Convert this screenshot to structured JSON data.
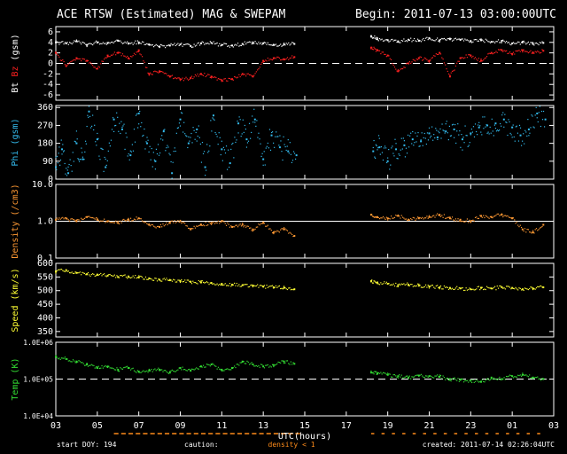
{
  "header": {
    "title": "ACE RTSW (Estimated) MAG & SWEPAM",
    "begin": "Begin: 2011-07-13 03:00:00UTC"
  },
  "footer": {
    "start_doy": "start DOY: 194",
    "caution_label": "caution:",
    "caution_value": "density < 1",
    "created": "created: 2011-07-14 02:26:04UTC"
  },
  "colors": {
    "bt": "#ffffff",
    "bz": "#ff2020",
    "phi": "#33bbee",
    "density": "#ff9933",
    "speed": "#ffff33",
    "temp": "#33dd33",
    "frame": "#ffffff",
    "caution": "#ff8c1a"
  },
  "chart_data": {
    "type": "scatter",
    "xlabel": "UTC(hours)",
    "xlim": [
      3,
      27
    ],
    "x_ticks": [
      "03",
      "05",
      "07",
      "09",
      "11",
      "13",
      "15",
      "17",
      "19",
      "21",
      "23",
      "01",
      "03"
    ],
    "data_gap_hours": [
      14.9,
      18.1
    ],
    "panels": [
      {
        "id": "mag",
        "ylabel_parts": [
          "Bt",
          "Bz",
          "(gsm)"
        ],
        "ylim": [
          -7,
          7
        ],
        "scale": "linear",
        "ticks": [
          6,
          4,
          2,
          0,
          -2,
          -4,
          -6
        ],
        "tick_labels": [
          "6",
          "4",
          "2",
          "0",
          "-2",
          "-4",
          "-6"
        ],
        "reference_line": 0,
        "series": [
          {
            "name": "Bt",
            "color_key": "bt",
            "x": [
              3,
              3.5,
              4,
              4.5,
              5,
              5.5,
              6,
              6.5,
              7,
              7.5,
              8,
              8.5,
              9,
              9.5,
              10,
              10.5,
              11,
              11.5,
              12,
              12.5,
              13,
              13.5,
              14,
              14.5,
              18.2,
              18.5,
              19,
              19.5,
              20,
              20.5,
              21,
              21.5,
              22,
              22.5,
              23,
              23.5,
              24,
              24.5,
              25,
              25.5,
              26,
              26.5
            ],
            "y": [
              4,
              3.8,
              4.2,
              3.5,
              4,
              3.9,
              4.3,
              3.8,
              4,
              3.6,
              3.2,
              3.4,
              3.6,
              3.3,
              3.8,
              3.9,
              3.5,
              3.4,
              3.7,
              4,
              3.8,
              3.5,
              3.6,
              3.7,
              5.2,
              4.6,
              4.4,
              4.2,
              4.5,
              4.3,
              4.8,
              4.4,
              4.6,
              4.5,
              4.2,
              4.4,
              4.1,
              4.3,
              3.8,
              4,
              3.7,
              3.9
            ]
          },
          {
            "name": "Bz",
            "color_key": "bz",
            "x": [
              3,
              3.5,
              4,
              4.5,
              5,
              5.5,
              6,
              6.5,
              7,
              7.5,
              8,
              8.5,
              9,
              9.5,
              10,
              10.5,
              11,
              11.5,
              12,
              12.5,
              13,
              13.5,
              14,
              14.5,
              18.2,
              18.5,
              19,
              19.5,
              20,
              20.5,
              21,
              21.5,
              22,
              22.5,
              23,
              23.5,
              24,
              24.5,
              25,
              25.5,
              26,
              26.5
            ],
            "y": [
              2,
              -0.5,
              1,
              0.5,
              -1,
              1.5,
              2,
              1,
              2.5,
              -2,
              -1.5,
              -2.5,
              -3,
              -2.8,
              -2,
              -2.5,
              -3.2,
              -3,
              -2,
              -2.5,
              0.5,
              1,
              0.8,
              1.2,
              3,
              2.5,
              1.5,
              -1.5,
              0,
              1,
              0.5,
              2,
              -2.5,
              1,
              1.5,
              0.5,
              2,
              2.5,
              1.8,
              2.5,
              2,
              2.4
            ]
          }
        ]
      },
      {
        "id": "phi",
        "ylabel_parts": [
          "Phi",
          "(gsm)"
        ],
        "ylim": [
          0,
          370
        ],
        "scale": "linear",
        "ticks": [
          360,
          270,
          180,
          90,
          0
        ],
        "tick_labels": [
          "360",
          "270",
          "180",
          "90",
          "0"
        ],
        "series": [
          {
            "name": "Phi",
            "color_key": "phi",
            "x": [
              3,
              3.3,
              3.6,
              4,
              4.3,
              4.6,
              5,
              5.4,
              5.8,
              6.2,
              6.6,
              7,
              7.4,
              7.8,
              8.2,
              8.6,
              9,
              9.4,
              9.8,
              10.2,
              10.6,
              11,
              11.4,
              11.8,
              12.2,
              12.6,
              13,
              13.4,
              13.8,
              14.2,
              14.6,
              18.3,
              18.6,
              19,
              19.4,
              19.8,
              20.2,
              20.6,
              21,
              21.4,
              21.8,
              22.2,
              22.6,
              23,
              23.4,
              23.8,
              24.2,
              24.6,
              25,
              25.4,
              25.8,
              26.2,
              26.6
            ],
            "y": [
              60,
              150,
              30,
              180,
              100,
              340,
              200,
              60,
              300,
              250,
              120,
              330,
              180,
              90,
              240,
              30,
              300,
              180,
              250,
              60,
              320,
              150,
              80,
              280,
              200,
              300,
              100,
              220,
              160,
              140,
              120,
              140,
              160,
              90,
              150,
              170,
              200,
              190,
              230,
              210,
              240,
              250,
              200,
              230,
              260,
              270,
              280,
              300,
              260,
              220,
              250,
              330,
              300
            ]
          }
        ]
      },
      {
        "id": "density",
        "ylabel_parts": [
          "Density",
          "(/cm3)"
        ],
        "ylim": [
          0.1,
          10
        ],
        "scale": "log",
        "ticks": [
          10,
          1,
          0.1
        ],
        "tick_labels": [
          "10.0",
          "1.0",
          "0.1"
        ],
        "reference_line": 1,
        "series": [
          {
            "name": "Density",
            "color_key": "density",
            "x": [
              3,
              3.5,
              4,
              4.5,
              5,
              5.5,
              6,
              6.5,
              7,
              7.5,
              8,
              8.5,
              9,
              9.5,
              10,
              10.5,
              11,
              11.5,
              12,
              12.5,
              13,
              13.5,
              14,
              14.5,
              18.2,
              18.5,
              19,
              19.5,
              20,
              20.5,
              21,
              21.5,
              22,
              22.5,
              23,
              23.5,
              24,
              24.5,
              25,
              25.5,
              26,
              26.5
            ],
            "y": [
              1.1,
              1.2,
              1.0,
              1.3,
              1.1,
              1.0,
              0.9,
              1.1,
              1.2,
              0.8,
              0.7,
              0.9,
              1.0,
              0.6,
              0.8,
              0.9,
              1.0,
              0.7,
              0.8,
              0.6,
              0.9,
              0.5,
              0.6,
              0.4,
              1.5,
              1.3,
              1.2,
              1.4,
              1.1,
              1.2,
              1.3,
              1.5,
              1.2,
              1.1,
              1.0,
              1.4,
              1.3,
              1.5,
              1.2,
              0.6,
              0.5,
              0.8
            ]
          }
        ]
      },
      {
        "id": "speed",
        "ylabel_parts": [
          "Speed",
          "(km/s)"
        ],
        "ylim": [
          330,
          600
        ],
        "scale": "linear",
        "ticks": [
          600,
          550,
          500,
          450,
          400,
          350
        ],
        "tick_labels": [
          "600",
          "550",
          "500",
          "450",
          "400",
          "350"
        ],
        "series": [
          {
            "name": "Speed",
            "color_key": "speed",
            "x": [
              3,
              3.5,
              4,
              4.5,
              5,
              5.5,
              6,
              6.5,
              7,
              7.5,
              8,
              8.5,
              9,
              9.5,
              10,
              10.5,
              11,
              11.5,
              12,
              12.5,
              13,
              13.5,
              14,
              14.5,
              18.2,
              18.5,
              19,
              19.5,
              20,
              20.5,
              21,
              21.5,
              22,
              22.5,
              23,
              23.5,
              24,
              24.5,
              25,
              25.5,
              26,
              26.5
            ],
            "y": [
              570,
              575,
              565,
              560,
              558,
              555,
              550,
              552,
              548,
              545,
              540,
              538,
              535,
              532,
              530,
              528,
              525,
              522,
              520,
              518,
              515,
              512,
              510,
              505,
              535,
              530,
              525,
              520,
              522,
              518,
              515,
              512,
              510,
              508,
              505,
              510,
              508,
              512,
              510,
              505,
              508,
              512
            ]
          }
        ]
      },
      {
        "id": "temp",
        "ylabel_parts": [
          "Temp",
          "(K)"
        ],
        "ylim": [
          10000,
          1000000
        ],
        "scale": "log",
        "ticks": [
          1000000,
          100000,
          10000
        ],
        "tick_labels": [
          "1.0E+06",
          "1.0E+05",
          "1.0E+04"
        ],
        "reference_line": 100000,
        "series": [
          {
            "name": "Temp",
            "color_key": "temp",
            "x": [
              3,
              3.5,
              4,
              4.5,
              5,
              5.5,
              6,
              6.5,
              7,
              7.5,
              8,
              8.5,
              9,
              9.5,
              10,
              10.5,
              11,
              11.5,
              12,
              12.5,
              13,
              13.5,
              14,
              14.5,
              18.2,
              18.5,
              19,
              19.5,
              20,
              20.5,
              21,
              21.5,
              22,
              22.5,
              23,
              23.5,
              24,
              24.5,
              25,
              25.5,
              26,
              26.5
            ],
            "y": [
              400000,
              350000,
              300000,
              250000,
              200000,
              220000,
              180000,
              200000,
              160000,
              170000,
              180000,
              150000,
              200000,
              170000,
              220000,
              250000,
              180000,
              200000,
              300000,
              250000,
              220000,
              240000,
              300000,
              260000,
              150000,
              140000,
              130000,
              120000,
              110000,
              125000,
              120000,
              115000,
              100000,
              95000,
              90000,
              85000,
              110000,
              100000,
              120000,
              130000,
              110000,
              100000
            ]
          }
        ]
      }
    ]
  }
}
